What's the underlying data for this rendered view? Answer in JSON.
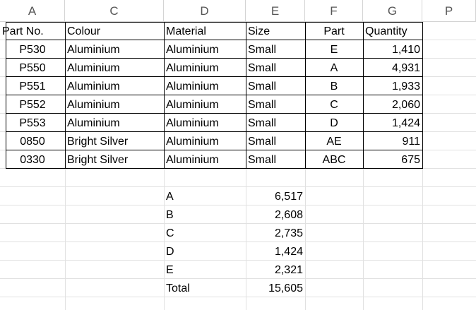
{
  "columns": [
    "A",
    "C",
    "D",
    "E",
    "F",
    "G",
    "P"
  ],
  "table": {
    "headers": [
      "Part No.",
      "Colour",
      "Material",
      "Size",
      "Part",
      "Quantity"
    ],
    "rows": [
      [
        "P530",
        "Aluminium",
        "Aluminium",
        "Small",
        "E",
        "1,410"
      ],
      [
        "P550",
        "Aluminium",
        "Aluminium",
        "Small",
        "A",
        "4,931"
      ],
      [
        "P551",
        "Aluminium",
        "Aluminium",
        "Small",
        "B",
        "1,933"
      ],
      [
        "P552",
        "Aluminium",
        "Aluminium",
        "Small",
        "C",
        "2,060"
      ],
      [
        "P553",
        "Aluminium",
        "Aluminium",
        "Small",
        "D",
        "1,424"
      ],
      [
        "0850",
        "Bright Silver",
        "Aluminium",
        "Small",
        "AE",
        "911"
      ],
      [
        "0330",
        "Bright Silver",
        "Aluminium",
        "Small",
        "ABC",
        "675"
      ]
    ]
  },
  "summary": [
    {
      "label": "A",
      "value": "6,517"
    },
    {
      "label": "B",
      "value": "2,608"
    },
    {
      "label": "C",
      "value": "2,735"
    },
    {
      "label": "D",
      "value": "1,424"
    },
    {
      "label": "E",
      "value": "2,321"
    },
    {
      "label": "Total",
      "value": "15,605"
    }
  ]
}
